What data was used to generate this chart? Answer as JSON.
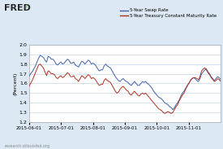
{
  "title": "FRED",
  "background_color": "#dce9f5",
  "plot_bg_color": "#ffffff",
  "ylabel": "(Percent)",
  "ylim": [
    1.2,
    2.0
  ],
  "yticks": [
    1.2,
    1.3,
    1.4,
    1.5,
    1.6,
    1.7,
    1.8,
    1.9,
    2.0
  ],
  "xlabel_dates": [
    "2015-06-01",
    "2015-07-01",
    "2015-08-01",
    "2015-09-01",
    "2015-10-01",
    "2015-11-01"
  ],
  "legend_blue": "5-Year Swap Rate",
  "legend_red": "5-Year Treasury Constant Maturity Rate",
  "blue_color": "#4060a8",
  "red_color": "#b03020",
  "watermark": "research.stlouisfed.org",
  "swap_y": [
    1.67,
    1.7,
    1.72,
    1.75,
    1.78,
    1.82,
    1.86,
    1.89,
    1.88,
    1.87,
    1.84,
    1.82,
    1.88,
    1.87,
    1.85,
    1.85,
    1.83,
    1.8,
    1.79,
    1.81,
    1.82,
    1.8,
    1.81,
    1.83,
    1.85,
    1.84,
    1.81,
    1.81,
    1.82,
    1.79,
    1.78,
    1.77,
    1.8,
    1.83,
    1.82,
    1.8,
    1.82,
    1.84,
    1.83,
    1.8,
    1.81,
    1.8,
    1.78,
    1.75,
    1.73,
    1.74,
    1.74,
    1.78,
    1.8,
    1.78,
    1.77,
    1.76,
    1.73,
    1.7,
    1.67,
    1.65,
    1.63,
    1.62,
    1.64,
    1.65,
    1.63,
    1.62,
    1.61,
    1.59,
    1.58,
    1.6,
    1.62,
    1.6,
    1.58,
    1.58,
    1.6,
    1.62,
    1.61,
    1.62,
    1.6,
    1.59,
    1.57,
    1.55,
    1.52,
    1.5,
    1.48,
    1.46,
    1.45,
    1.44,
    1.42,
    1.4,
    1.39,
    1.38,
    1.36,
    1.35,
    1.33,
    1.35,
    1.38,
    1.4,
    1.43,
    1.47,
    1.5,
    1.52,
    1.55,
    1.58,
    1.6,
    1.63,
    1.65,
    1.66,
    1.65,
    1.63,
    1.62,
    1.65,
    1.7,
    1.72,
    1.74,
    1.75,
    1.72,
    1.7,
    1.67,
    1.65,
    1.63,
    1.65,
    1.67,
    1.66,
    1.64
  ],
  "treasury_y": [
    1.57,
    1.6,
    1.63,
    1.67,
    1.71,
    1.75,
    1.79,
    1.8,
    1.78,
    1.76,
    1.72,
    1.68,
    1.73,
    1.72,
    1.7,
    1.7,
    1.69,
    1.66,
    1.65,
    1.67,
    1.68,
    1.66,
    1.67,
    1.69,
    1.71,
    1.7,
    1.67,
    1.67,
    1.68,
    1.65,
    1.64,
    1.62,
    1.65,
    1.68,
    1.67,
    1.65,
    1.67,
    1.69,
    1.68,
    1.65,
    1.66,
    1.65,
    1.63,
    1.6,
    1.58,
    1.59,
    1.59,
    1.63,
    1.65,
    1.63,
    1.62,
    1.61,
    1.58,
    1.55,
    1.52,
    1.5,
    1.51,
    1.54,
    1.56,
    1.57,
    1.55,
    1.53,
    1.52,
    1.49,
    1.48,
    1.5,
    1.52,
    1.5,
    1.48,
    1.47,
    1.49,
    1.5,
    1.49,
    1.5,
    1.48,
    1.46,
    1.44,
    1.42,
    1.4,
    1.38,
    1.36,
    1.34,
    1.33,
    1.32,
    1.3,
    1.29,
    1.3,
    1.31,
    1.3,
    1.29,
    1.3,
    1.33,
    1.36,
    1.38,
    1.42,
    1.45,
    1.48,
    1.5,
    1.54,
    1.57,
    1.6,
    1.63,
    1.65,
    1.66,
    1.66,
    1.65,
    1.64,
    1.67,
    1.73,
    1.75,
    1.76,
    1.74,
    1.71,
    1.69,
    1.66,
    1.64,
    1.62,
    1.63,
    1.65,
    1.64,
    1.62
  ]
}
